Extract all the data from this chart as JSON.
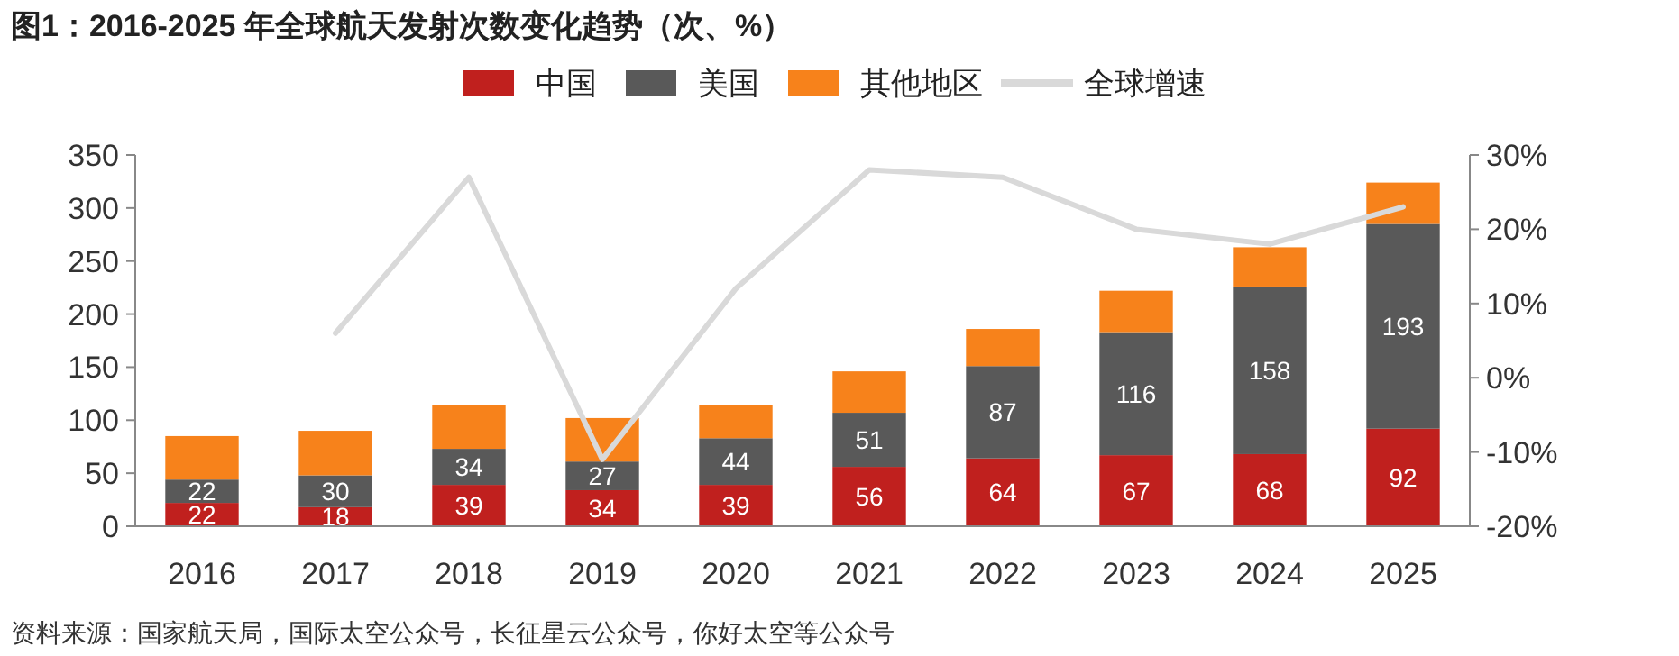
{
  "chart_data": {
    "type": "bar",
    "title": "图1：2016-2025 年全球航天发射次数变化趋势（次、%）",
    "categories": [
      "2016",
      "2017",
      "2018",
      "2019",
      "2020",
      "2021",
      "2022",
      "2023",
      "2024",
      "2025"
    ],
    "stacked": true,
    "legend": "top",
    "grid": false,
    "series": [
      {
        "name": "中国",
        "color": "#c0201e",
        "values": [
          22,
          18,
          39,
          34,
          39,
          56,
          64,
          67,
          68,
          92
        ],
        "value_labels": [
          "22",
          "18",
          "39",
          "34",
          "39",
          "56",
          "64",
          "67",
          "68",
          "92"
        ]
      },
      {
        "name": "美国",
        "color": "#595959",
        "values": [
          22,
          30,
          34,
          27,
          44,
          51,
          87,
          116,
          158,
          193
        ],
        "value_labels": [
          "22",
          "30",
          "34",
          "27",
          "44",
          "51",
          "87",
          "116",
          "158",
          "193"
        ]
      },
      {
        "name": "其他地区",
        "color": "#f7821b",
        "values": [
          41,
          42,
          41,
          41,
          31,
          39,
          35,
          39,
          37,
          39
        ]
      },
      {
        "name": "全球增速",
        "type": "line",
        "axis": "y2",
        "color": "#d9d9d9",
        "marker": "none",
        "values": [
          null,
          6,
          27,
          -11,
          12,
          28,
          27,
          20,
          18,
          23
        ]
      }
    ],
    "ylim": [
      0,
      350
    ],
    "yticks": [
      0,
      50,
      100,
      150,
      200,
      250,
      300,
      350
    ],
    "y2lim": [
      -20,
      30
    ],
    "y2ticks": [
      {
        "value": -20,
        "label": "-20%"
      },
      {
        "value": -10,
        "label": "-10%"
      },
      {
        "value": 0,
        "label": "0%"
      },
      {
        "value": 10,
        "label": "10%"
      },
      {
        "value": 20,
        "label": "20%"
      },
      {
        "value": 30,
        "label": "30%"
      }
    ],
    "annotations": [
      "资料来源：国家航天局，国际太空公众号，长征星云公众号，你好太空等公众号"
    ]
  }
}
